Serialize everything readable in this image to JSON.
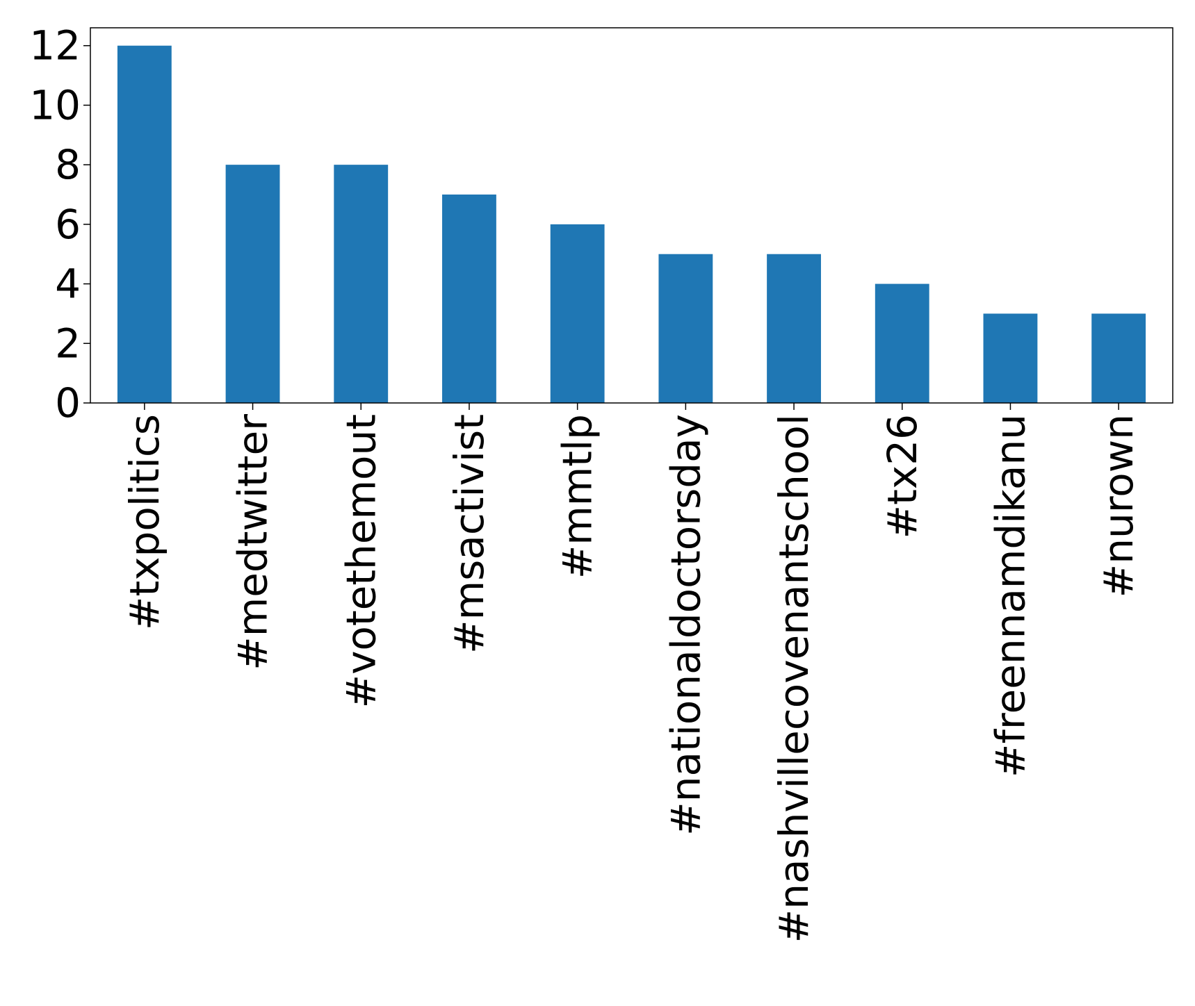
{
  "chart_data": {
    "type": "bar",
    "title": "",
    "xlabel": "",
    "ylabel": "",
    "categories": [
      "#txpolitics",
      "#medtwitter",
      "#votethemout",
      "#msactivist",
      "#mmtlp",
      "#nationaldoctorsday",
      "#nashvillecovenantschool",
      "#tx26",
      "#freennamdikanu",
      "#nurown"
    ],
    "values": [
      12,
      8,
      8,
      7,
      6,
      5,
      5,
      4,
      3,
      3
    ],
    "ylim": [
      0,
      12.6
    ],
    "yticks": [
      0,
      2,
      4,
      6,
      8,
      10,
      12
    ],
    "grid": false,
    "legend": "none",
    "bar_color": "#1f77b4"
  }
}
